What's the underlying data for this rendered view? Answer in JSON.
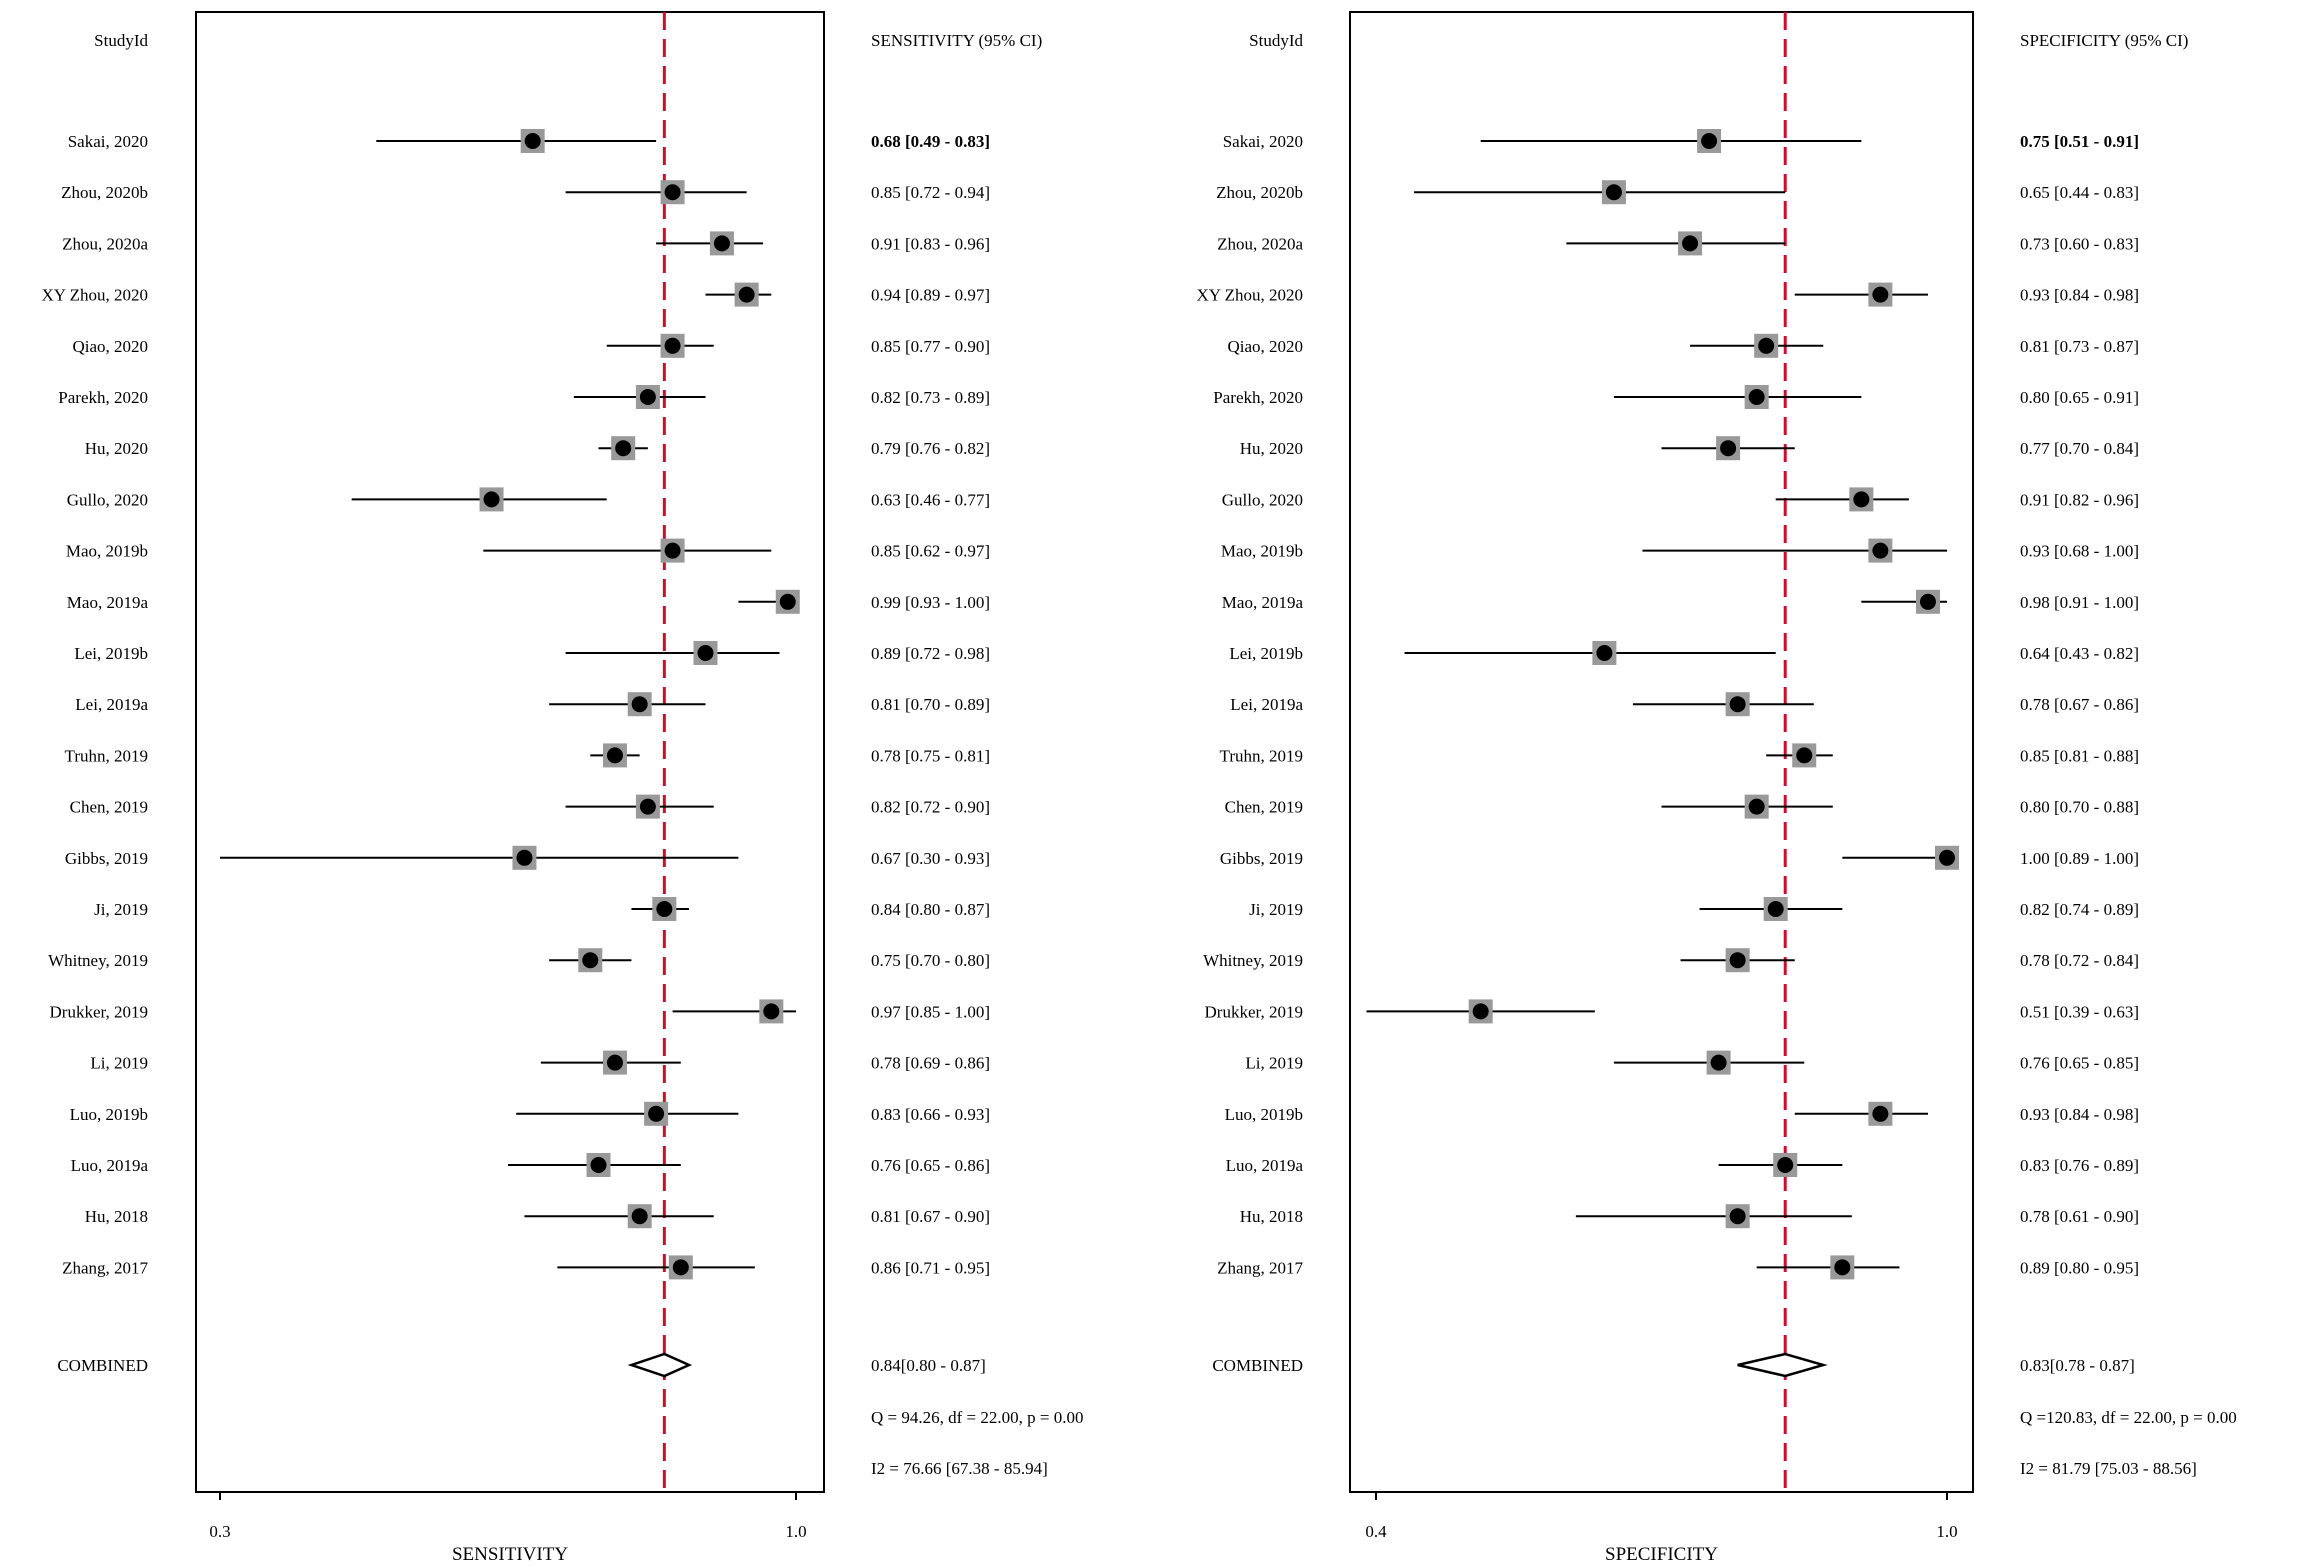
{
  "studies": [
    "Sakai, 2020",
    "Zhou, 2020b",
    "Zhou, 2020a",
    "XY Zhou, 2020",
    "Qiao, 2020",
    "Parekh, 2020",
    "Hu, 2020",
    "Gullo, 2020",
    "Mao, 2019b",
    "Mao, 2019a",
    "Lei, 2019b",
    "Lei, 2019a",
    "Truhn, 2019",
    "Chen, 2019",
    "Gibbs, 2019",
    "Ji, 2019",
    "Whitney, 2019",
    "Drukker, 2019",
    "Li, 2019",
    "Luo, 2019b",
    "Luo, 2019a",
    "Hu, 2018",
    "Zhang, 2017"
  ],
  "combined_label": "COMBINED",
  "study_header": "StudyId",
  "chart_data": [
    {
      "type": "forest",
      "metric": "sensitivity",
      "header": "SENSITIVITY (95% CI)",
      "xlabel": "SENSITIVITY",
      "xlim": [
        0.3,
        1.0
      ],
      "ticks": [
        "0.3",
        "1.0"
      ],
      "reference_line": 0.84,
      "estimates": [
        0.68,
        0.85,
        0.91,
        0.94,
        0.85,
        0.82,
        0.79,
        0.63,
        0.85,
        0.99,
        0.89,
        0.81,
        0.78,
        0.82,
        0.67,
        0.84,
        0.75,
        0.97,
        0.78,
        0.83,
        0.76,
        0.81,
        0.86
      ],
      "lower": [
        0.49,
        0.72,
        0.83,
        0.89,
        0.77,
        0.73,
        0.76,
        0.46,
        0.62,
        0.93,
        0.72,
        0.7,
        0.75,
        0.72,
        0.3,
        0.8,
        0.7,
        0.85,
        0.69,
        0.66,
        0.65,
        0.67,
        0.71
      ],
      "upper": [
        0.83,
        0.94,
        0.96,
        0.97,
        0.9,
        0.89,
        0.82,
        0.77,
        0.97,
        1.0,
        0.98,
        0.89,
        0.81,
        0.9,
        0.93,
        0.87,
        0.8,
        1.0,
        0.86,
        0.93,
        0.86,
        0.9,
        0.95
      ],
      "ci_labels": [
        "0.68 [0.49 - 0.83]",
        "0.85 [0.72 - 0.94]",
        "0.91 [0.83 - 0.96]",
        "0.94 [0.89 - 0.97]",
        "0.85 [0.77 - 0.90]",
        "0.82 [0.73 - 0.89]",
        "0.79 [0.76 - 0.82]",
        "0.63 [0.46 - 0.77]",
        "0.85 [0.62 - 0.97]",
        "0.99 [0.93 - 1.00]",
        "0.89 [0.72 - 0.98]",
        "0.81 [0.70 - 0.89]",
        "0.78 [0.75 - 0.81]",
        "0.82 [0.72 - 0.90]",
        "0.67 [0.30 - 0.93]",
        "0.84 [0.80 - 0.87]",
        "0.75 [0.70 - 0.80]",
        "0.97 [0.85 - 1.00]",
        "0.78 [0.69 - 0.86]",
        "0.83 [0.66 - 0.93]",
        "0.76 [0.65 - 0.86]",
        "0.81 [0.67 - 0.90]",
        "0.86 [0.71 - 0.95]"
      ],
      "combined": {
        "estimate": 0.84,
        "lower": 0.8,
        "upper": 0.87,
        "label": "0.84[0.80 - 0.87]"
      },
      "heterogeneity_q": "Q = 94.26, df = 22.00, p =  0.00",
      "heterogeneity_i2": "I2 = 76.66 [67.38 - 85.94]"
    },
    {
      "type": "forest",
      "metric": "specificity",
      "header": "SPECIFICITY (95% CI)",
      "xlabel": "SPECIFICITY",
      "xlim": [
        0.4,
        1.0
      ],
      "ticks": [
        "0.4",
        "1.0"
      ],
      "reference_line": 0.83,
      "estimates": [
        0.75,
        0.65,
        0.73,
        0.93,
        0.81,
        0.8,
        0.77,
        0.91,
        0.93,
        0.98,
        0.64,
        0.78,
        0.85,
        0.8,
        1.0,
        0.82,
        0.78,
        0.51,
        0.76,
        0.93,
        0.83,
        0.78,
        0.89
      ],
      "lower": [
        0.51,
        0.44,
        0.6,
        0.84,
        0.73,
        0.65,
        0.7,
        0.82,
        0.68,
        0.91,
        0.43,
        0.67,
        0.81,
        0.7,
        0.89,
        0.74,
        0.72,
        0.39,
        0.65,
        0.84,
        0.76,
        0.61,
        0.8
      ],
      "upper": [
        0.91,
        0.83,
        0.83,
        0.98,
        0.87,
        0.91,
        0.84,
        0.96,
        1.0,
        1.0,
        0.82,
        0.86,
        0.88,
        0.88,
        1.0,
        0.89,
        0.84,
        0.63,
        0.85,
        0.98,
        0.89,
        0.9,
        0.95
      ],
      "ci_labels": [
        "0.75 [0.51 - 0.91]",
        "0.65 [0.44 - 0.83]",
        "0.73 [0.60 - 0.83]",
        "0.93 [0.84 - 0.98]",
        "0.81 [0.73 - 0.87]",
        "0.80 [0.65 - 0.91]",
        "0.77 [0.70 - 0.84]",
        "0.91 [0.82 - 0.96]",
        "0.93 [0.68 - 1.00]",
        "0.98 [0.91 - 1.00]",
        "0.64 [0.43 - 0.82]",
        "0.78 [0.67 - 0.86]",
        "0.85 [0.81 - 0.88]",
        "0.80 [0.70 - 0.88]",
        "1.00 [0.89 - 1.00]",
        "0.82 [0.74 - 0.89]",
        "0.78 [0.72 - 0.84]",
        "0.51 [0.39 - 0.63]",
        "0.76 [0.65 - 0.85]",
        "0.93 [0.84 - 0.98]",
        "0.83 [0.76 - 0.89]",
        "0.78 [0.61 - 0.90]",
        "0.89 [0.80 - 0.95]"
      ],
      "combined": {
        "estimate": 0.83,
        "lower": 0.78,
        "upper": 0.87,
        "label": "0.83[0.78 - 0.87]"
      },
      "heterogeneity_q": "Q =120.83, df = 22.00, p =  0.00",
      "heterogeneity_i2": "I2 = 81.79 [75.03 - 88.56]"
    }
  ],
  "colors": {
    "reference_line": "#c8102e",
    "marker_box": "#999999",
    "marker_dot": "#000000",
    "ink": "#000000"
  }
}
